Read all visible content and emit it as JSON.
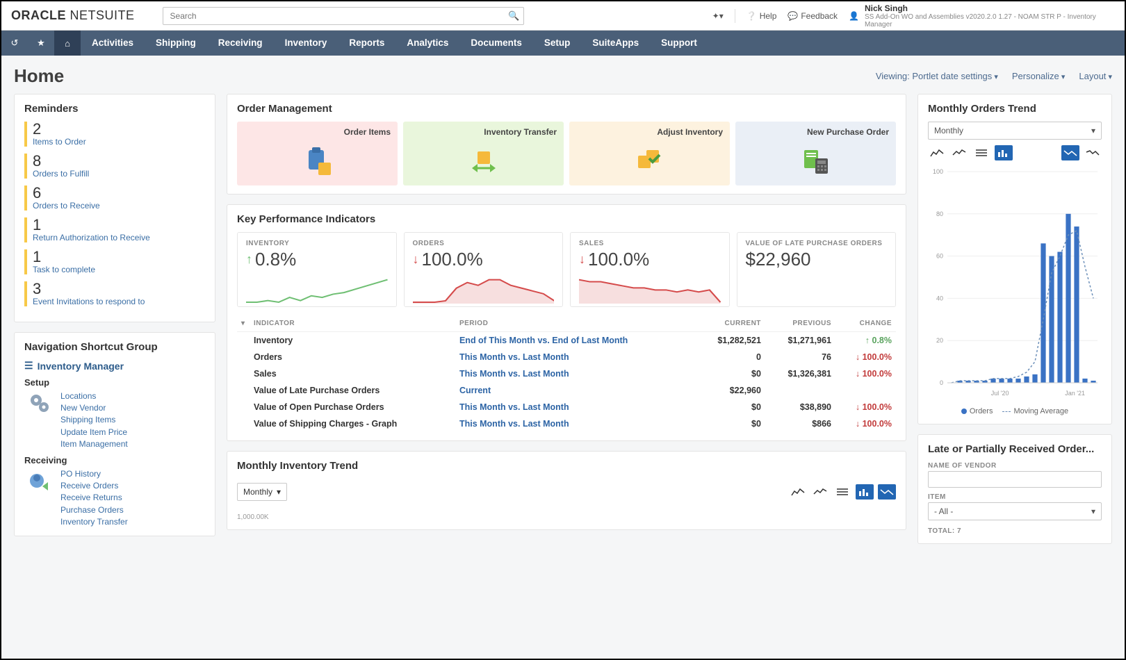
{
  "header": {
    "logo_bold": "ORACLE",
    "logo_light": " NETSUITE",
    "search_placeholder": "Search",
    "help": "Help",
    "feedback": "Feedback",
    "user_name": "Nick Singh",
    "user_role": "SS Add-On WO and Assemblies v2020.2.0 1.27 - NOAM STR P - Inventory Manager"
  },
  "nav": {
    "items": [
      "Activities",
      "Shipping",
      "Receiving",
      "Inventory",
      "Reports",
      "Analytics",
      "Documents",
      "Setup",
      "SuiteApps",
      "Support"
    ]
  },
  "page": {
    "title": "Home",
    "viewing": "Viewing: Portlet date settings",
    "personalize": "Personalize",
    "layout": "Layout"
  },
  "reminders": {
    "title": "Reminders",
    "accent": "#f7c948",
    "items": [
      {
        "count": "2",
        "label": "Items to Order"
      },
      {
        "count": "8",
        "label": "Orders to Fulfill"
      },
      {
        "count": "6",
        "label": "Orders to Receive"
      },
      {
        "count": "1",
        "label": "Return Authorization to Receive"
      },
      {
        "count": "1",
        "label": "Task to complete"
      },
      {
        "count": "3",
        "label": "Event Invitations to respond to"
      }
    ]
  },
  "shortcuts": {
    "title": "Navigation Shortcut Group",
    "role": "Inventory Manager",
    "setup_label": "Setup",
    "setup_links": [
      "Locations",
      "New Vendor",
      "Shipping Items",
      "Update Item Price",
      "Item Management"
    ],
    "receiving_label": "Receiving",
    "receiving_links": [
      "PO History",
      "Receive Orders",
      "Receive Returns",
      "Purchase Orders",
      "Inventory Transfer"
    ]
  },
  "order_mgmt": {
    "title": "Order Management",
    "tiles": [
      {
        "label": "Order Items",
        "bg": "#fde6e6"
      },
      {
        "label": "Inventory Transfer",
        "bg": "#e9f6dc"
      },
      {
        "label": "Adjust Inventory",
        "bg": "#fdf2df"
      },
      {
        "label": "New Purchase Order",
        "bg": "#eaeff6"
      }
    ]
  },
  "kpi": {
    "title": "Key Performance Indicators",
    "cards": [
      {
        "label": "INVENTORY",
        "value": "0.8%",
        "dir": "up",
        "color": "#6fbf73",
        "spark": [
          6,
          6,
          7,
          6,
          9,
          7,
          10,
          9,
          11,
          12,
          14,
          16,
          18,
          20
        ]
      },
      {
        "label": "ORDERS",
        "value": "100.0%",
        "dir": "down",
        "color": "#d54b4b",
        "spark": [
          2,
          2,
          2,
          3,
          12,
          16,
          14,
          18,
          18,
          14,
          12,
          10,
          8,
          3
        ]
      },
      {
        "label": "SALES",
        "value": "100.0%",
        "dir": "down",
        "color": "#d54b4b",
        "spark": [
          14,
          13,
          13,
          12,
          11,
          10,
          10,
          9,
          9,
          8,
          9,
          8,
          9,
          3
        ]
      },
      {
        "label": "VALUE OF LATE PURCHASE ORDERS",
        "value": "$22,960",
        "dir": "",
        "color": "#333",
        "spark": null
      }
    ],
    "table": {
      "headers": [
        "INDICATOR",
        "PERIOD",
        "CURRENT",
        "PREVIOUS",
        "CHANGE"
      ],
      "rows": [
        {
          "indicator": "Inventory",
          "period": "End of This Month vs. End of Last Month",
          "current": "$1,282,521",
          "previous": "$1,271,961",
          "change": "0.8%",
          "dir": "up"
        },
        {
          "indicator": "Orders",
          "period": "This Month vs. Last Month",
          "current": "0",
          "previous": "76",
          "change": "100.0%",
          "dir": "down"
        },
        {
          "indicator": "Sales",
          "period": "This Month vs. Last Month",
          "current": "$0",
          "previous": "$1,326,381",
          "change": "100.0%",
          "dir": "down"
        },
        {
          "indicator": "Value of Late Purchase Orders",
          "period": "Current",
          "current": "$22,960",
          "previous": "",
          "change": "",
          "dir": ""
        },
        {
          "indicator": "Value of Open Purchase Orders",
          "period": "This Month vs. Last Month",
          "current": "$0",
          "previous": "$38,890",
          "change": "100.0%",
          "dir": "down"
        },
        {
          "indicator": "Value of Shipping Charges - Graph",
          "period": "This Month vs. Last Month",
          "current": "$0",
          "previous": "$866",
          "change": "100.0%",
          "dir": "down"
        }
      ]
    }
  },
  "monthly_orders": {
    "title": "Monthly Orders Trend",
    "select_value": "Monthly",
    "y_max": 100,
    "y_step": 20,
    "x_labels": [
      "Jul '20",
      "Jan '21"
    ],
    "bar_color": "#3a72c4",
    "ma_color": "#6b8fb9",
    "bars": [
      0,
      1,
      1,
      1,
      1,
      2,
      2,
      2,
      2,
      3,
      4,
      66,
      60,
      62,
      80,
      74,
      2,
      1
    ],
    "moving": [
      0,
      1,
      1,
      1,
      1,
      2,
      2,
      2,
      3,
      5,
      10,
      30,
      52,
      60,
      70,
      72,
      55,
      40
    ],
    "legend": {
      "orders": "Orders",
      "ma": "Moving Average"
    }
  },
  "late_received": {
    "title": "Late or Partially Received Order...",
    "vendor_label": "NAME OF VENDOR",
    "item_label": "ITEM",
    "item_value": "- All -",
    "total_label": "TOTAL: 7"
  },
  "inv_trend": {
    "title": "Monthly Inventory Trend",
    "select_value": "Monthly",
    "axis_label": "1,000.00K"
  },
  "colors": {
    "link": "#3a6ea5",
    "navbar": "#4a5f78",
    "panel_border": "#e3e3e3"
  }
}
